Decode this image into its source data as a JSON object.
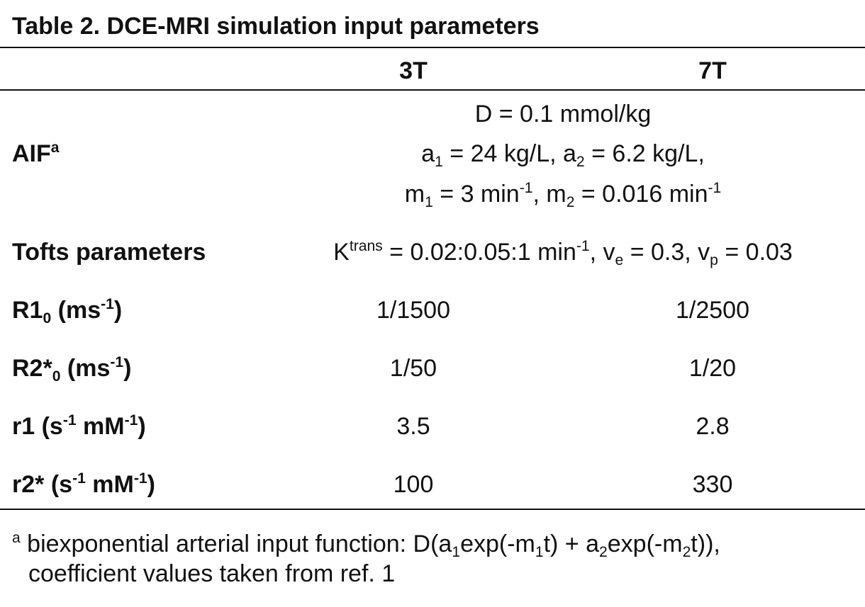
{
  "title": "Table 2. DCE-MRI simulation input parameters",
  "header": [
    "3T",
    "7T"
  ],
  "rows": [
    {
      "label": [
        "AIF",
        {
          "sup": "a"
        }
      ],
      "shared": [
        [
          "D = 0.1 mmol/kg"
        ],
        [
          "a",
          {
            "sub": "1"
          },
          " = 24 kg/L, a",
          {
            "sub": "2"
          },
          " = 6.2 kg/L,"
        ],
        [
          "m",
          {
            "sub": "1"
          },
          " = 3 min",
          {
            "sup": "-1"
          },
          ", m",
          {
            "sub": "2"
          },
          " = 0.016 min",
          {
            "sup": "-1"
          }
        ]
      ]
    },
    {
      "label": [
        "Tofts parameters"
      ],
      "shared": [
        [
          "K",
          {
            "sup": "trans"
          },
          " = 0.02:0.05:1 min",
          {
            "sup": "-1"
          },
          ", v",
          {
            "sub": "e"
          },
          " = 0.3, v",
          {
            "sub": "p"
          },
          " = 0.03"
        ]
      ]
    },
    {
      "label": [
        "R1",
        {
          "sub": "0"
        },
        " (ms",
        {
          "sup": "-1"
        },
        ")"
      ],
      "values": [
        "1/1500",
        "1/2500"
      ]
    },
    {
      "label": [
        "R2*",
        {
          "sub": "0"
        },
        " (ms",
        {
          "sup": "-1"
        },
        ")"
      ],
      "values": [
        "1/50",
        "1/20"
      ]
    },
    {
      "label": [
        "r1 (s",
        {
          "sup": "-1"
        },
        " mM",
        {
          "sup": "-1"
        },
        ")"
      ],
      "values": [
        3.5,
        2.8
      ]
    },
    {
      "label": [
        "r2* (s",
        {
          "sup": "-1"
        },
        " mM",
        {
          "sup": "-1"
        },
        ")"
      ],
      "values": [
        100,
        330
      ]
    }
  ],
  "footnote": [
    [
      {
        "sup": "a"
      },
      " biexponential arterial input function: D(a",
      {
        "sub": "1"
      },
      "exp(-m",
      {
        "sub": "1"
      },
      "t) + a",
      {
        "sub": "2"
      },
      "exp(-m",
      {
        "sub": "2"
      },
      "t)),"
    ],
    [
      "coefficient values taken from ref. 1"
    ]
  ]
}
